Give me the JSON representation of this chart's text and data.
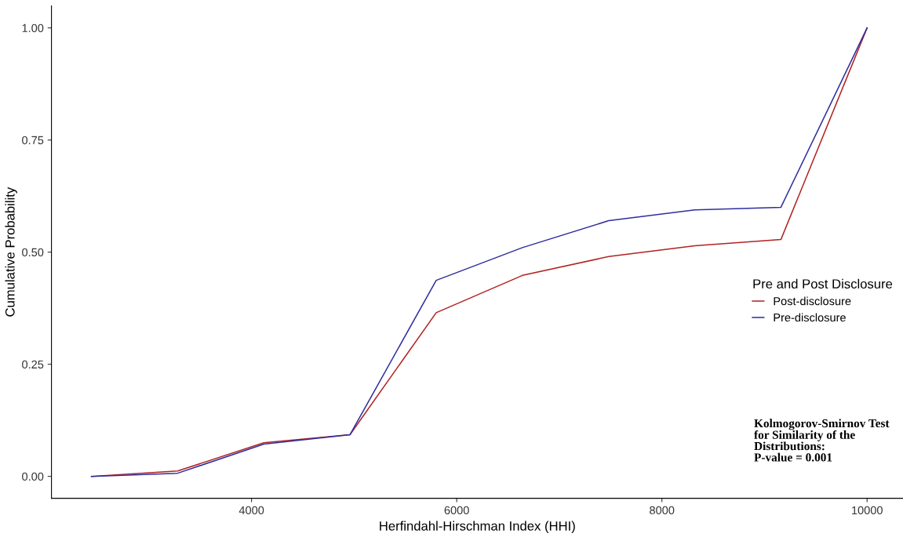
{
  "chart_data": {
    "type": "line",
    "xlabel": "Herfindahl-Hirschman Index (HHI)",
    "ylabel": "Cumulative Probability",
    "legend_title": "Pre and Post Disclosure",
    "legend": "right",
    "grid": false,
    "marker": "none",
    "line_style": "solid",
    "x": [
      2440,
      3280,
      4120,
      4960,
      5800,
      6640,
      7480,
      8320,
      9160,
      10000
    ],
    "series": [
      {
        "name": "Post-disclosure",
        "color": "#b22222",
        "values": [
          0,
          0.012,
          0.075,
          0.093,
          0.365,
          0.448,
          0.49,
          0.514,
          0.528,
          1.0
        ]
      },
      {
        "name": "Pre-disclosure",
        "color": "#2e2e9e",
        "values": [
          0,
          0.007,
          0.072,
          0.093,
          0.437,
          0.51,
          0.57,
          0.594,
          0.6,
          1.0
        ]
      }
    ],
    "xlim": [
      2050,
      10350
    ],
    "xticks": [
      4000,
      6000,
      8000,
      10000
    ],
    "ylim": [
      -0.049,
      1.049
    ],
    "yticks": [
      {
        "value": 0,
        "label": "0.00"
      },
      {
        "value": 0.25,
        "label": "0.25"
      },
      {
        "value": 0.5,
        "label": "0.50"
      },
      {
        "value": 0.75,
        "label": "0.75"
      },
      {
        "value": 1.0,
        "label": "1.00"
      }
    ],
    "annotations": [
      "Kolmogorov-Smirnov Test\nfor Similarity of the\nDistributions:\nP-value = 0.001"
    ]
  }
}
